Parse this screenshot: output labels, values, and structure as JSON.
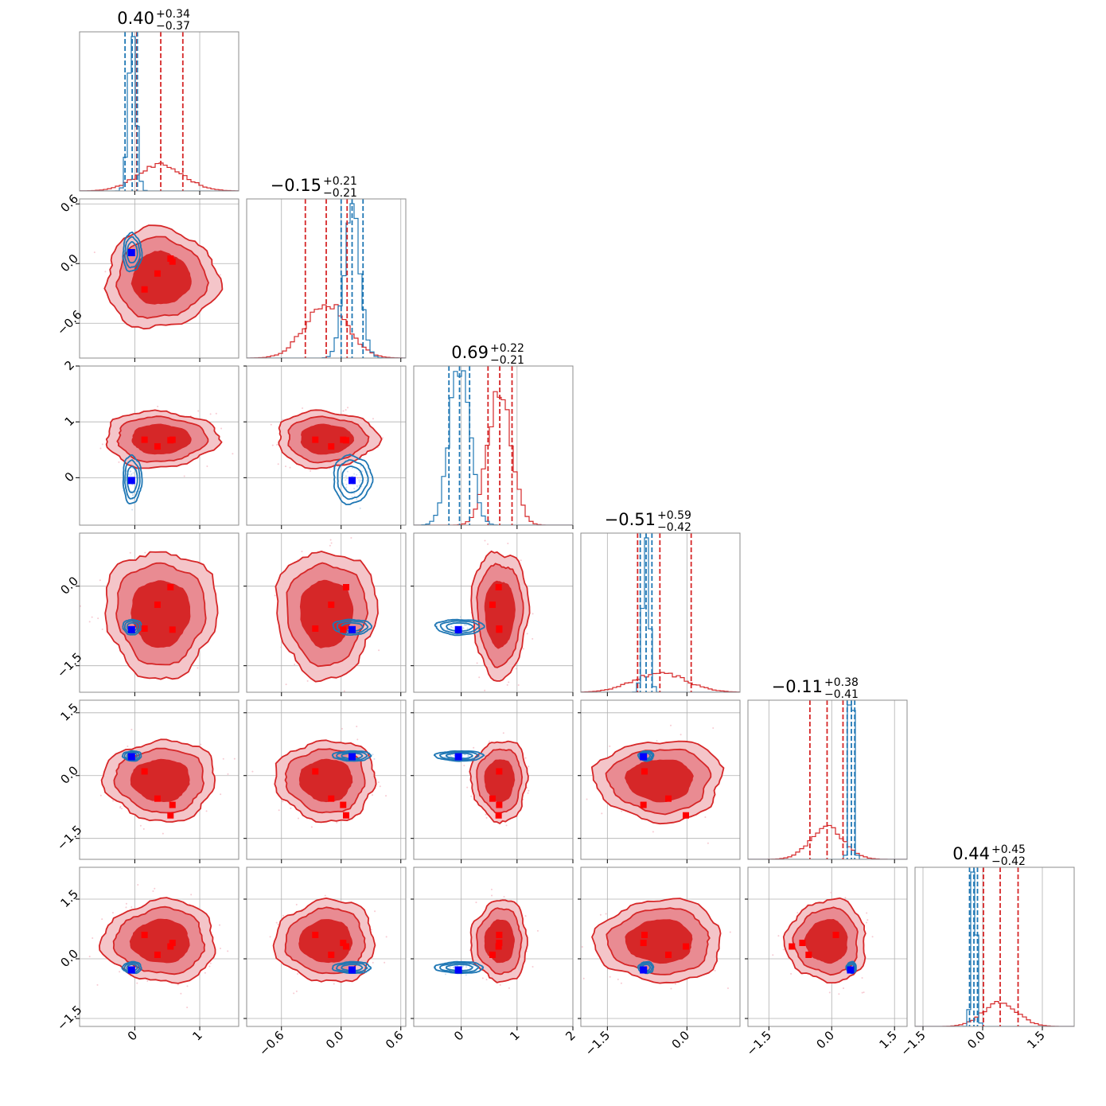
{
  "chart_data": {
    "type": "corner",
    "n_params": 6,
    "colors": {
      "red": "#d62728",
      "blue": "#1f77b4",
      "marker_red": "#ff0000",
      "marker_blue": "#0000ff"
    },
    "series": [
      {
        "color": "red"
      },
      {
        "color": "blue"
      }
    ],
    "params": [
      {
        "range": [
          -0.85,
          1.6
        ],
        "ticks": [
          0,
          1
        ],
        "tick_labels": [
          "0",
          "1"
        ],
        "title": {
          "value": "0.40",
          "plus": "+0.34",
          "minus": "−0.37"
        },
        "red": {
          "mean": 0.4,
          "sd": 0.36,
          "q": [
            0.03,
            0.4,
            0.74
          ]
        },
        "blue": {
          "mean": -0.04,
          "sd": 0.06,
          "q": [
            -0.15,
            -0.04,
            0.04
          ]
        }
      },
      {
        "range": [
          -0.95,
          0.65
        ],
        "ticks": [
          -0.6,
          0.0,
          0.6
        ],
        "tick_labels": [
          "−0.6",
          "0.0",
          "0.6"
        ],
        "title": {
          "value": "−0.15",
          "plus": "+0.21",
          "minus": "−0.21"
        },
        "red": {
          "mean": -0.15,
          "sd": 0.21,
          "q": [
            -0.36,
            -0.15,
            0.06
          ]
        },
        "blue": {
          "mean": 0.11,
          "sd": 0.08,
          "q": [
            0.0,
            0.11,
            0.22
          ]
        }
      },
      {
        "range": [
          -0.85,
          2.0
        ],
        "ticks": [
          0,
          1,
          2
        ],
        "tick_labels": [
          "0",
          "1",
          "2"
        ],
        "title": {
          "value": "0.69",
          "plus": "+0.22",
          "minus": "−0.21"
        },
        "red": {
          "mean": 0.69,
          "sd": 0.21,
          "q": [
            0.48,
            0.69,
            0.91
          ]
        },
        "blue": {
          "mean": -0.03,
          "sd": 0.18,
          "q": [
            -0.22,
            -0.03,
            0.15
          ]
        }
      },
      {
        "range": [
          -2.0,
          1.0
        ],
        "ticks": [
          -1.5,
          0.0
        ],
        "tick_labels": [
          "−1.5",
          "0.0"
        ],
        "title": {
          "value": "−0.51",
          "plus": "+0.59",
          "minus": "−0.42"
        },
        "red": {
          "mean": -0.51,
          "sd": 0.5,
          "q": [
            -0.93,
            -0.51,
            0.08
          ]
        },
        "blue": {
          "mean": -0.77,
          "sd": 0.06,
          "q": [
            -0.88,
            -0.77,
            -0.66
          ]
        }
      },
      {
        "range": [
          -2.0,
          1.8
        ],
        "ticks": [
          -1.5,
          0.0,
          1.5
        ],
        "tick_labels": [
          "−1.5",
          "0.0",
          "1.5"
        ],
        "title": {
          "value": "−0.11",
          "plus": "+0.38",
          "minus": "−0.41"
        },
        "red": {
          "mean": -0.11,
          "sd": 0.4,
          "q": [
            -0.52,
            -0.11,
            0.27
          ]
        },
        "blue": {
          "mean": 0.47,
          "sd": 0.05,
          "q": [
            0.37,
            0.47,
            0.55
          ]
        }
      },
      {
        "range": [
          -1.7,
          2.3
        ],
        "ticks": [
          -1.5,
          0.0,
          1.5
        ],
        "tick_labels": [
          "−1.5",
          "0.0",
          "1.5"
        ],
        "title": {
          "value": "0.44",
          "plus": "+0.45",
          "minus": "−0.42"
        },
        "red": {
          "mean": 0.44,
          "sd": 0.43,
          "q": [
            0.02,
            0.44,
            0.89
          ]
        },
        "blue": {
          "mean": -0.22,
          "sd": 0.06,
          "q": [
            -0.33,
            -0.22,
            -0.13
          ]
        }
      }
    ],
    "markers_red": [
      [
        0.15,
        -0.26,
        0.68,
        -0.8,
        0.1,
        0.6
      ],
      [
        0.35,
        -0.1,
        0.56,
        -0.35,
        -0.55,
        0.1
      ],
      [
        0.55,
        0.05,
        0.67,
        -0.02,
        -0.95,
        0.31
      ],
      [
        0.58,
        0.02,
        0.68,
        -0.82,
        -0.7,
        0.4
      ]
    ],
    "marker_blue": [
      -0.05,
      0.11,
      -0.05,
      -0.82,
      0.45,
      -0.28
    ]
  }
}
